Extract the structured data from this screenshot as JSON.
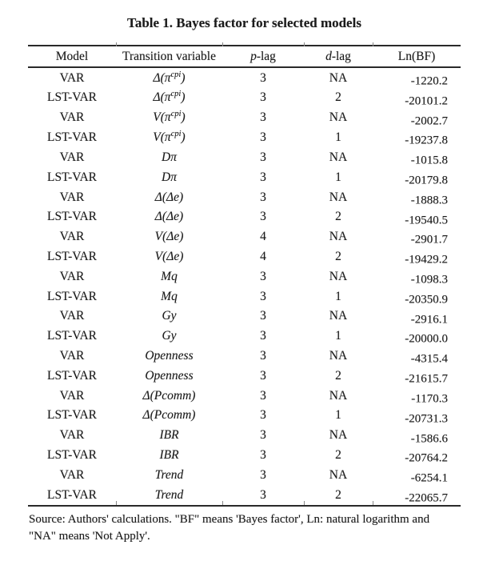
{
  "title": "Table 1. Bayes factor for selected models",
  "table": {
    "headers": {
      "model": "Model",
      "transition_variable": "Transition variable",
      "p_italic": "p",
      "p_rest": "-lag",
      "d_italic": "d",
      "d_rest": "-lag",
      "lnbf": "Ln(BF)"
    },
    "rows": [
      {
        "model": "VAR",
        "tv": "Δ(π",
        "tv_sup": "cpi",
        "tv_end": ")",
        "p_lag": "3",
        "d_lag": "NA",
        "ln_bf": "-1220.2"
      },
      {
        "model": "LST-VAR",
        "tv": "Δ(π",
        "tv_sup": "cpi",
        "tv_end": ")",
        "p_lag": "3",
        "d_lag": "2",
        "ln_bf": "-20101.2"
      },
      {
        "model": "VAR",
        "tv": "V(π",
        "tv_sup": "cpi",
        "tv_end": ")",
        "p_lag": "3",
        "d_lag": "NA",
        "ln_bf": "-2002.7"
      },
      {
        "model": "LST-VAR",
        "tv": "V(π",
        "tv_sup": "cpi",
        "tv_end": ")",
        "p_lag": "3",
        "d_lag": "1",
        "ln_bf": "-19237.8"
      },
      {
        "model": "VAR",
        "tv": "Dπ",
        "tv_sup": "",
        "tv_end": "",
        "p_lag": "3",
        "d_lag": "NA",
        "ln_bf": "-1015.8"
      },
      {
        "model": "LST-VAR",
        "tv": "Dπ",
        "tv_sup": "",
        "tv_end": "",
        "p_lag": "3",
        "d_lag": "1",
        "ln_bf": "-20179.8"
      },
      {
        "model": "VAR",
        "tv": "Δ(Δe)",
        "tv_sup": "",
        "tv_end": "",
        "p_lag": "3",
        "d_lag": "NA",
        "ln_bf": "-1888.3"
      },
      {
        "model": "LST-VAR",
        "tv": "Δ(Δe)",
        "tv_sup": "",
        "tv_end": "",
        "p_lag": "3",
        "d_lag": "2",
        "ln_bf": "-19540.5"
      },
      {
        "model": "VAR",
        "tv": "V(Δe)",
        "tv_sup": "",
        "tv_end": "",
        "p_lag": "4",
        "d_lag": "NA",
        "ln_bf": "-2901.7"
      },
      {
        "model": "LST-VAR",
        "tv": "V(Δe)",
        "tv_sup": "",
        "tv_end": "",
        "p_lag": "4",
        "d_lag": "2",
        "ln_bf": "-19429.2"
      },
      {
        "model": "VAR",
        "tv": "Mq",
        "tv_sup": "",
        "tv_end": "",
        "p_lag": "3",
        "d_lag": "NA",
        "ln_bf": "-1098.3"
      },
      {
        "model": "LST-VAR",
        "tv": "Mq",
        "tv_sup": "",
        "tv_end": "",
        "p_lag": "3",
        "d_lag": "1",
        "ln_bf": "-20350.9"
      },
      {
        "model": "VAR",
        "tv": "Gy",
        "tv_sup": "",
        "tv_end": "",
        "p_lag": "3",
        "d_lag": "NA",
        "ln_bf": "-2916.1"
      },
      {
        "model": "LST-VAR",
        "tv": "Gy",
        "tv_sup": "",
        "tv_end": "",
        "p_lag": "3",
        "d_lag": "1",
        "ln_bf": "-20000.0"
      },
      {
        "model": "VAR",
        "tv": "Openness",
        "tv_sup": "",
        "tv_end": "",
        "p_lag": "3",
        "d_lag": "NA",
        "ln_bf": "-4315.4"
      },
      {
        "model": "LST-VAR",
        "tv": "Openness",
        "tv_sup": "",
        "tv_end": "",
        "p_lag": "3",
        "d_lag": "2",
        "ln_bf": "-21615.7"
      },
      {
        "model": "VAR",
        "tv": "Δ(Pcomm)",
        "tv_sup": "",
        "tv_end": "",
        "p_lag": "3",
        "d_lag": "NA",
        "ln_bf": "-1170.3"
      },
      {
        "model": "LST-VAR",
        "tv": "Δ(Pcomm)",
        "tv_sup": "",
        "tv_end": "",
        "p_lag": "3",
        "d_lag": "1",
        "ln_bf": "-20731.3"
      },
      {
        "model": "VAR",
        "tv": "IBR",
        "tv_sup": "",
        "tv_end": "",
        "p_lag": "3",
        "d_lag": "NA",
        "ln_bf": "-1586.6"
      },
      {
        "model": "LST-VAR",
        "tv": "IBR",
        "tv_sup": "",
        "tv_end": "",
        "p_lag": "3",
        "d_lag": "2",
        "ln_bf": "-20764.2"
      },
      {
        "model": "VAR",
        "tv": "Trend",
        "tv_sup": "",
        "tv_end": "",
        "p_lag": "3",
        "d_lag": "NA",
        "ln_bf": "-6254.1"
      },
      {
        "model": "LST-VAR",
        "tv": "Trend",
        "tv_sup": "",
        "tv_end": "",
        "p_lag": "3",
        "d_lag": "2",
        "ln_bf": "-22065.7"
      }
    ]
  },
  "footnote": {
    "line1": "Source: Authors' calculations. \"BF\" means 'Bayes factor', Ln: natural logarithm and",
    "line2": "\"NA\" means 'Not Apply'."
  },
  "colors": {
    "text": "#1b1b1b",
    "rule": "#2a2a2a",
    "tick": "#8a8a8a",
    "background": "#ffffff"
  }
}
